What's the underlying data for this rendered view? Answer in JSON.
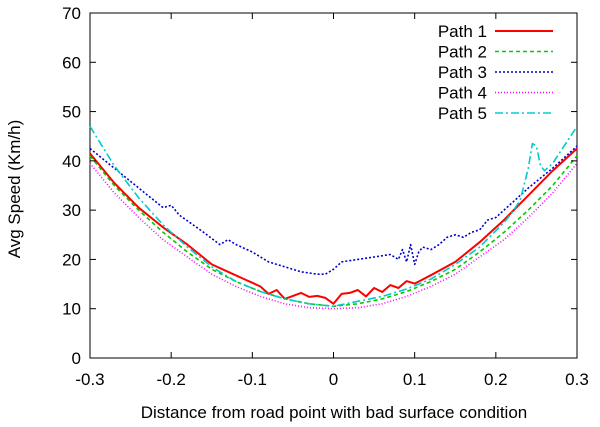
{
  "chart_data": {
    "type": "line",
    "xlabel": "Distance from road point with bad surface condition",
    "ylabel": "Avg Speed (Km/h)",
    "xlim": [
      -0.3,
      0.3
    ],
    "ylim": [
      0,
      70
    ],
    "xticks": [
      -0.3,
      -0.2,
      -0.1,
      0,
      0.1,
      0.2,
      0.3
    ],
    "xtick_labels": [
      "-0.3",
      "-0.2",
      "-0.1",
      "0",
      "0.1",
      "0.2",
      "0.3"
    ],
    "yticks": [
      0,
      10,
      20,
      30,
      40,
      50,
      60,
      70
    ],
    "ytick_labels": [
      "0",
      "10",
      "20",
      "30",
      "40",
      "50",
      "60",
      "70"
    ],
    "grid": false,
    "legend_position": "top-right",
    "series": [
      {
        "name": "Path 1",
        "color": "#ff0000",
        "dash": "solid",
        "x": [
          -0.3,
          -0.27,
          -0.24,
          -0.21,
          -0.18,
          -0.15,
          -0.13,
          -0.11,
          -0.09,
          -0.08,
          -0.07,
          -0.06,
          -0.05,
          -0.04,
          -0.03,
          -0.02,
          -0.01,
          0,
          0.01,
          0.02,
          0.03,
          0.04,
          0.05,
          0.06,
          0.07,
          0.08,
          0.09,
          0.1,
          0.12,
          0.15,
          0.18,
          0.21,
          0.24,
          0.27,
          0.3
        ],
        "y": [
          41.5,
          35.5,
          30.5,
          26.5,
          23,
          19,
          17.5,
          16,
          14.5,
          13,
          13.8,
          12,
          12.6,
          13.2,
          12.4,
          12.6,
          12.2,
          11,
          13,
          13.2,
          13.8,
          12.5,
          14.2,
          13.4,
          14.8,
          14.2,
          15.6,
          15.1,
          16.8,
          19.5,
          23.5,
          28,
          33,
          38,
          42.5
        ]
      },
      {
        "name": "Path 2",
        "color": "#00cc00",
        "dash": "4,3",
        "x": [
          -0.3,
          -0.27,
          -0.24,
          -0.21,
          -0.18,
          -0.15,
          -0.12,
          -0.09,
          -0.06,
          -0.03,
          0,
          0.03,
          0.06,
          0.09,
          0.12,
          0.15,
          0.18,
          0.21,
          0.24,
          0.27,
          0.3
        ],
        "y": [
          41,
          35,
          30,
          25.5,
          21.5,
          18,
          15.5,
          13.5,
          12,
          11,
          10.5,
          11,
          12,
          13.5,
          15.5,
          18,
          21.5,
          25.5,
          30,
          35,
          41
        ]
      },
      {
        "name": "Path 3",
        "color": "#0000cc",
        "dash": "2,2",
        "x": [
          -0.3,
          -0.27,
          -0.24,
          -0.21,
          -0.2,
          -0.19,
          -0.16,
          -0.14,
          -0.13,
          -0.12,
          -0.1,
          -0.08,
          -0.06,
          -0.04,
          -0.02,
          -0.01,
          0,
          0.01,
          0.03,
          0.05,
          0.07,
          0.08,
          0.085,
          0.09,
          0.095,
          0.1,
          0.105,
          0.11,
          0.12,
          0.13,
          0.14,
          0.15,
          0.16,
          0.17,
          0.18,
          0.19,
          0.2,
          0.21,
          0.22,
          0.24,
          0.27,
          0.3
        ],
        "y": [
          42.5,
          38.5,
          34.5,
          30.5,
          31,
          29,
          25.5,
          23,
          24,
          23,
          21.5,
          19.5,
          18.5,
          17.5,
          17,
          17,
          18,
          19.5,
          20,
          20.5,
          21,
          20,
          22,
          19.5,
          23,
          19,
          21.5,
          22.5,
          22,
          23,
          24.5,
          25,
          24.5,
          25.5,
          26,
          28,
          28.5,
          30,
          31.5,
          34.5,
          38.5,
          43
        ]
      },
      {
        "name": "Path 4",
        "color": "#ff00ff",
        "dash": "1,2",
        "x": [
          -0.3,
          -0.27,
          -0.24,
          -0.21,
          -0.18,
          -0.15,
          -0.12,
          -0.09,
          -0.06,
          -0.03,
          0,
          0.03,
          0.06,
          0.09,
          0.12,
          0.15,
          0.18,
          0.21,
          0.24,
          0.27,
          0.3
        ],
        "y": [
          39.5,
          33.5,
          28.5,
          24,
          20.5,
          17,
          14.5,
          12.5,
          11,
          10.2,
          10,
          10.2,
          11,
          12.5,
          14.5,
          17,
          20.5,
          24,
          28.5,
          33.5,
          39.5
        ]
      },
      {
        "name": "Path 5",
        "color": "#00cccc",
        "dash": "8,3,2,3",
        "x": [
          -0.3,
          -0.27,
          -0.24,
          -0.21,
          -0.18,
          -0.15,
          -0.12,
          -0.09,
          -0.06,
          -0.03,
          0,
          0.03,
          0.06,
          0.09,
          0.12,
          0.15,
          0.18,
          0.21,
          0.22,
          0.23,
          0.24,
          0.245,
          0.25,
          0.255,
          0.26,
          0.27,
          0.3
        ],
        "y": [
          47,
          39,
          32.5,
          27,
          22.5,
          18.5,
          15.5,
          13.5,
          12,
          11,
          10.5,
          11.5,
          12.5,
          14,
          16,
          19,
          22.5,
          27.5,
          29.5,
          32,
          38.5,
          43.5,
          43,
          39,
          38,
          39.5,
          47
        ]
      }
    ]
  }
}
